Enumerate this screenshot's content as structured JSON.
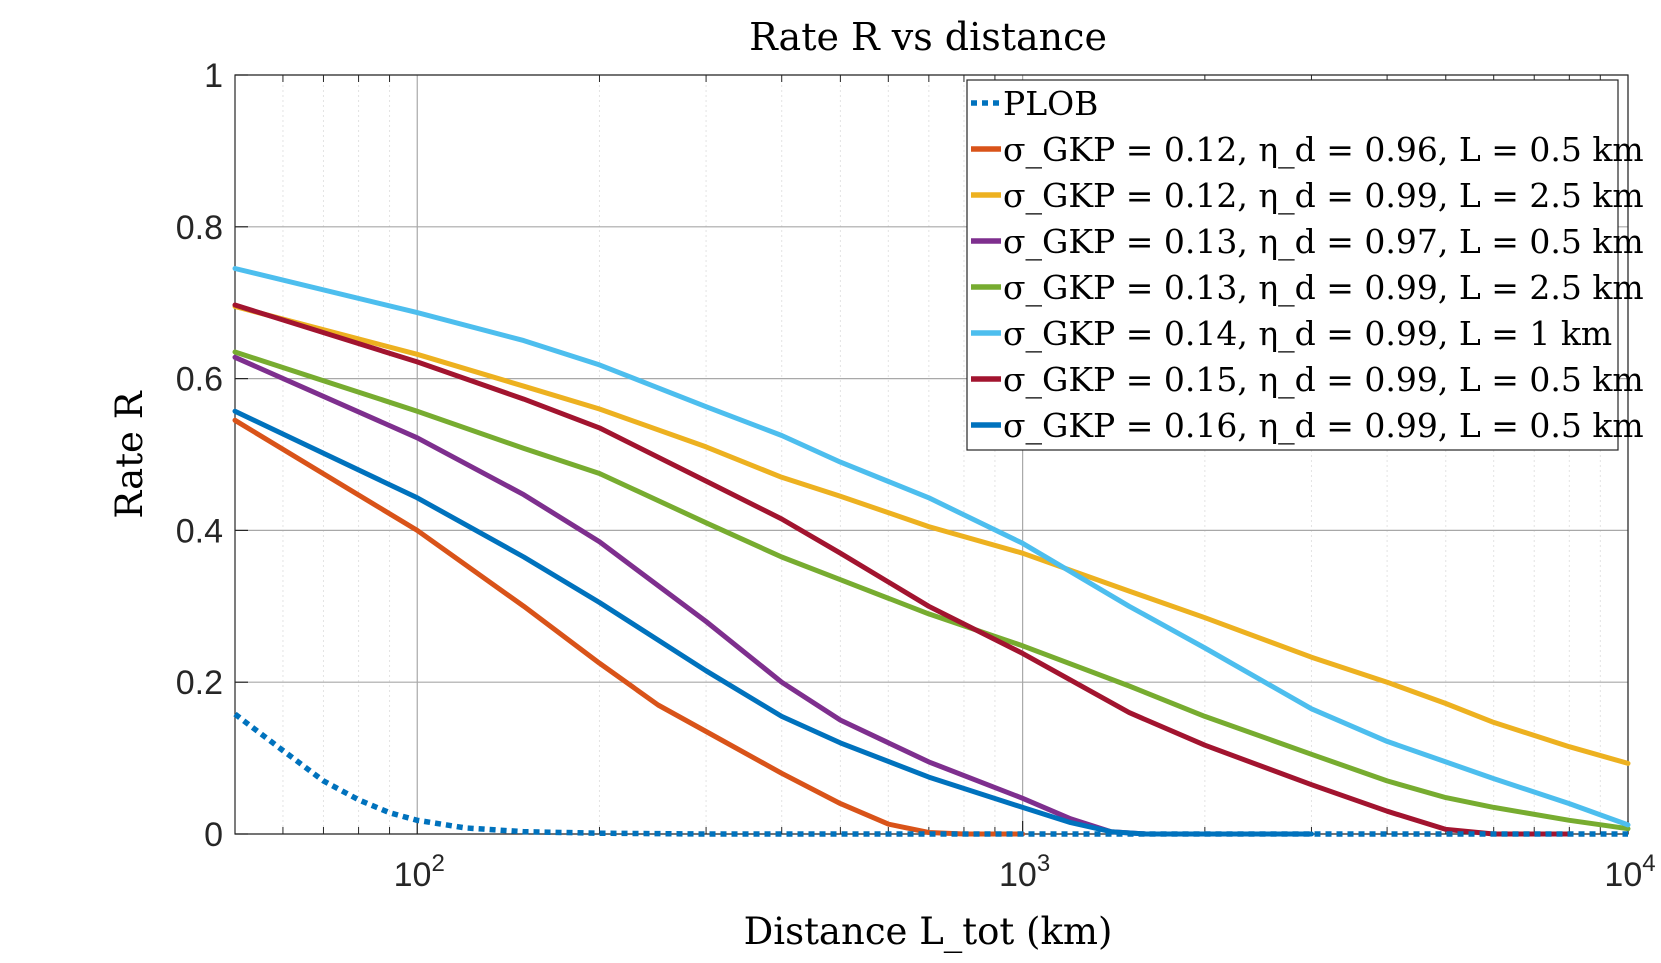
{
  "chart_data": {
    "type": "line",
    "title": "Rate R vs distance",
    "xlabel": "Distance L_tot (km)",
    "ylabel": "Rate R",
    "xscale": "log",
    "xlim": [
      50,
      10000
    ],
    "ylim": [
      0,
      1
    ],
    "xticks": [
      100,
      1000,
      10000
    ],
    "xtick_labels": [
      {
        "base": "10",
        "exp": "2"
      },
      {
        "base": "10",
        "exp": "3"
      },
      {
        "base": "10",
        "exp": "4"
      }
    ],
    "yticks": [
      0,
      0.2,
      0.4,
      0.6,
      0.8,
      1
    ],
    "ytick_labels": [
      "0",
      "0.2",
      "0.4",
      "0.6",
      "0.8",
      "1"
    ],
    "grid": true,
    "legend_position": "top-right",
    "series": [
      {
        "name": "PLOB",
        "color": "#0072BD",
        "dashed": true,
        "x": [
          50,
          60,
          70,
          80,
          90,
          100,
          120,
          150,
          200,
          300,
          500,
          1000,
          2000,
          5000,
          10000
        ],
        "y": [
          0.158,
          0.11,
          0.07,
          0.045,
          0.028,
          0.018,
          0.008,
          0.003,
          0.001,
          0.0,
          0.0,
          0.0,
          0.0,
          0.0,
          0.0
        ]
      },
      {
        "name": "σ_GKP = 0.12, η_d = 0.96, L = 0.5 km",
        "color": "#D95319",
        "dashed": false,
        "x": [
          50,
          100,
          150,
          200,
          250,
          300,
          400,
          500,
          600,
          700,
          800,
          900,
          1000
        ],
        "y": [
          0.545,
          0.4,
          0.3,
          0.225,
          0.17,
          0.135,
          0.08,
          0.04,
          0.013,
          0.002,
          0.0,
          0.0,
          0.0
        ]
      },
      {
        "name": "σ_GKP = 0.12, η_d = 0.99, L = 2.5 km",
        "color": "#EDB120",
        "dashed": false,
        "x": [
          50,
          100,
          150,
          200,
          300,
          400,
          500,
          700,
          1000,
          1500,
          2000,
          3000,
          4000,
          5000,
          6000,
          8000,
          10000
        ],
        "y": [
          0.695,
          0.632,
          0.59,
          0.56,
          0.51,
          0.47,
          0.445,
          0.405,
          0.37,
          0.32,
          0.285,
          0.233,
          0.2,
          0.172,
          0.147,
          0.115,
          0.093
        ]
      },
      {
        "name": "σ_GKP = 0.13, η_d = 0.97, L = 0.5 km",
        "color": "#7E2F8E",
        "dashed": false,
        "x": [
          50,
          100,
          150,
          200,
          300,
          400,
          500,
          700,
          1000,
          1200,
          1400,
          1600
        ],
        "y": [
          0.628,
          0.522,
          0.447,
          0.385,
          0.28,
          0.2,
          0.15,
          0.095,
          0.047,
          0.02,
          0.003,
          0.0
        ]
      },
      {
        "name": "σ_GKP = 0.13, η_d = 0.99, L = 2.5 km",
        "color": "#77AC30",
        "dashed": false,
        "x": [
          50,
          100,
          150,
          200,
          300,
          400,
          500,
          700,
          1000,
          1500,
          2000,
          3000,
          4000,
          5000,
          6000,
          8000,
          10000
        ],
        "y": [
          0.635,
          0.557,
          0.508,
          0.475,
          0.41,
          0.365,
          0.335,
          0.29,
          0.248,
          0.195,
          0.155,
          0.105,
          0.07,
          0.048,
          0.035,
          0.018,
          0.007
        ]
      },
      {
        "name": "σ_GKP = 0.14, η_d = 0.99, L = 1 km",
        "color": "#4DBEEE",
        "dashed": false,
        "x": [
          50,
          100,
          150,
          200,
          300,
          400,
          500,
          700,
          1000,
          1500,
          2000,
          3000,
          4000,
          5000,
          6000,
          8000,
          10000
        ],
        "y": [
          0.745,
          0.687,
          0.65,
          0.618,
          0.563,
          0.525,
          0.49,
          0.443,
          0.383,
          0.3,
          0.245,
          0.165,
          0.122,
          0.095,
          0.073,
          0.04,
          0.012
        ]
      },
      {
        "name": "σ_GKP = 0.15, η_d = 0.99, L = 0.5 km",
        "color": "#A2142F",
        "dashed": false,
        "x": [
          50,
          100,
          150,
          200,
          300,
          400,
          500,
          700,
          1000,
          1500,
          2000,
          3000,
          4000,
          5000,
          6000,
          8000
        ],
        "y": [
          0.697,
          0.622,
          0.573,
          0.535,
          0.465,
          0.415,
          0.37,
          0.3,
          0.238,
          0.16,
          0.117,
          0.065,
          0.03,
          0.006,
          0.0,
          0.0
        ]
      },
      {
        "name": "σ_GKP = 0.16, η_d = 0.99, L = 0.5 km",
        "color": "#0072BD",
        "dashed": false,
        "x": [
          50,
          100,
          150,
          200,
          300,
          400,
          500,
          700,
          1000,
          1200,
          1400,
          1600,
          2000,
          3000
        ],
        "y": [
          0.557,
          0.443,
          0.365,
          0.305,
          0.215,
          0.155,
          0.12,
          0.075,
          0.035,
          0.015,
          0.003,
          0.0,
          0.0,
          0.0
        ]
      }
    ]
  }
}
